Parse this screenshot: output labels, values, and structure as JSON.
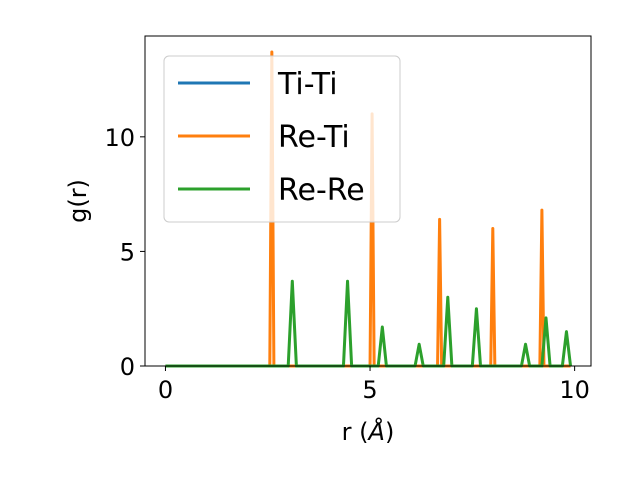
{
  "chart_data": {
    "type": "line",
    "title": "",
    "xlabel": "r (",
    "xlabel_unit": "Å",
    "xlabel_close": ")",
    "ylabel": "g(r)",
    "xlim": [
      -0.5,
      10.4
    ],
    "ylim": [
      0,
      14.4
    ],
    "xticks": [
      0,
      5,
      10
    ],
    "yticks": [
      0,
      5,
      10
    ],
    "xtick_labels": [
      "0",
      "5",
      "10"
    ],
    "ytick_labels": [
      "0",
      "5",
      "10"
    ],
    "grid": false,
    "legend_position": "top-left",
    "series": [
      {
        "name": "Ti-Ti",
        "color": "#1f77b4",
        "points": [
          [
            0,
            0
          ],
          [
            9.9,
            0
          ]
        ]
      },
      {
        "name": "Re-Ti",
        "color": "#ff7f0e",
        "points": [
          [
            0,
            0
          ],
          [
            2.55,
            0
          ],
          [
            2.6,
            13.7
          ],
          [
            2.65,
            0
          ],
          [
            5.0,
            0
          ],
          [
            5.05,
            11.0
          ],
          [
            5.1,
            0
          ],
          [
            6.65,
            0
          ],
          [
            6.7,
            6.4
          ],
          [
            6.75,
            0
          ],
          [
            7.95,
            0
          ],
          [
            8.0,
            6.0
          ],
          [
            8.05,
            0
          ],
          [
            9.15,
            0
          ],
          [
            9.2,
            6.8
          ],
          [
            9.25,
            0
          ],
          [
            9.9,
            0
          ]
        ]
      },
      {
        "name": "Re-Re",
        "color": "#2ca02c",
        "points": [
          [
            0,
            0
          ],
          [
            3.0,
            0
          ],
          [
            3.1,
            3.7
          ],
          [
            3.2,
            0
          ],
          [
            4.35,
            0
          ],
          [
            4.45,
            3.7
          ],
          [
            4.55,
            0
          ],
          [
            5.2,
            0
          ],
          [
            5.3,
            1.7
          ],
          [
            5.4,
            0
          ],
          [
            6.1,
            0
          ],
          [
            6.2,
            0.95
          ],
          [
            6.3,
            0
          ],
          [
            6.8,
            0
          ],
          [
            6.9,
            3.0
          ],
          [
            7.0,
            0
          ],
          [
            7.5,
            0
          ],
          [
            7.6,
            2.5
          ],
          [
            7.7,
            0
          ],
          [
            8.7,
            0
          ],
          [
            8.8,
            0.95
          ],
          [
            8.9,
            0
          ],
          [
            9.2,
            0
          ],
          [
            9.3,
            2.1
          ],
          [
            9.4,
            0
          ],
          [
            9.7,
            0
          ],
          [
            9.8,
            1.5
          ],
          [
            9.9,
            0
          ]
        ]
      }
    ]
  }
}
